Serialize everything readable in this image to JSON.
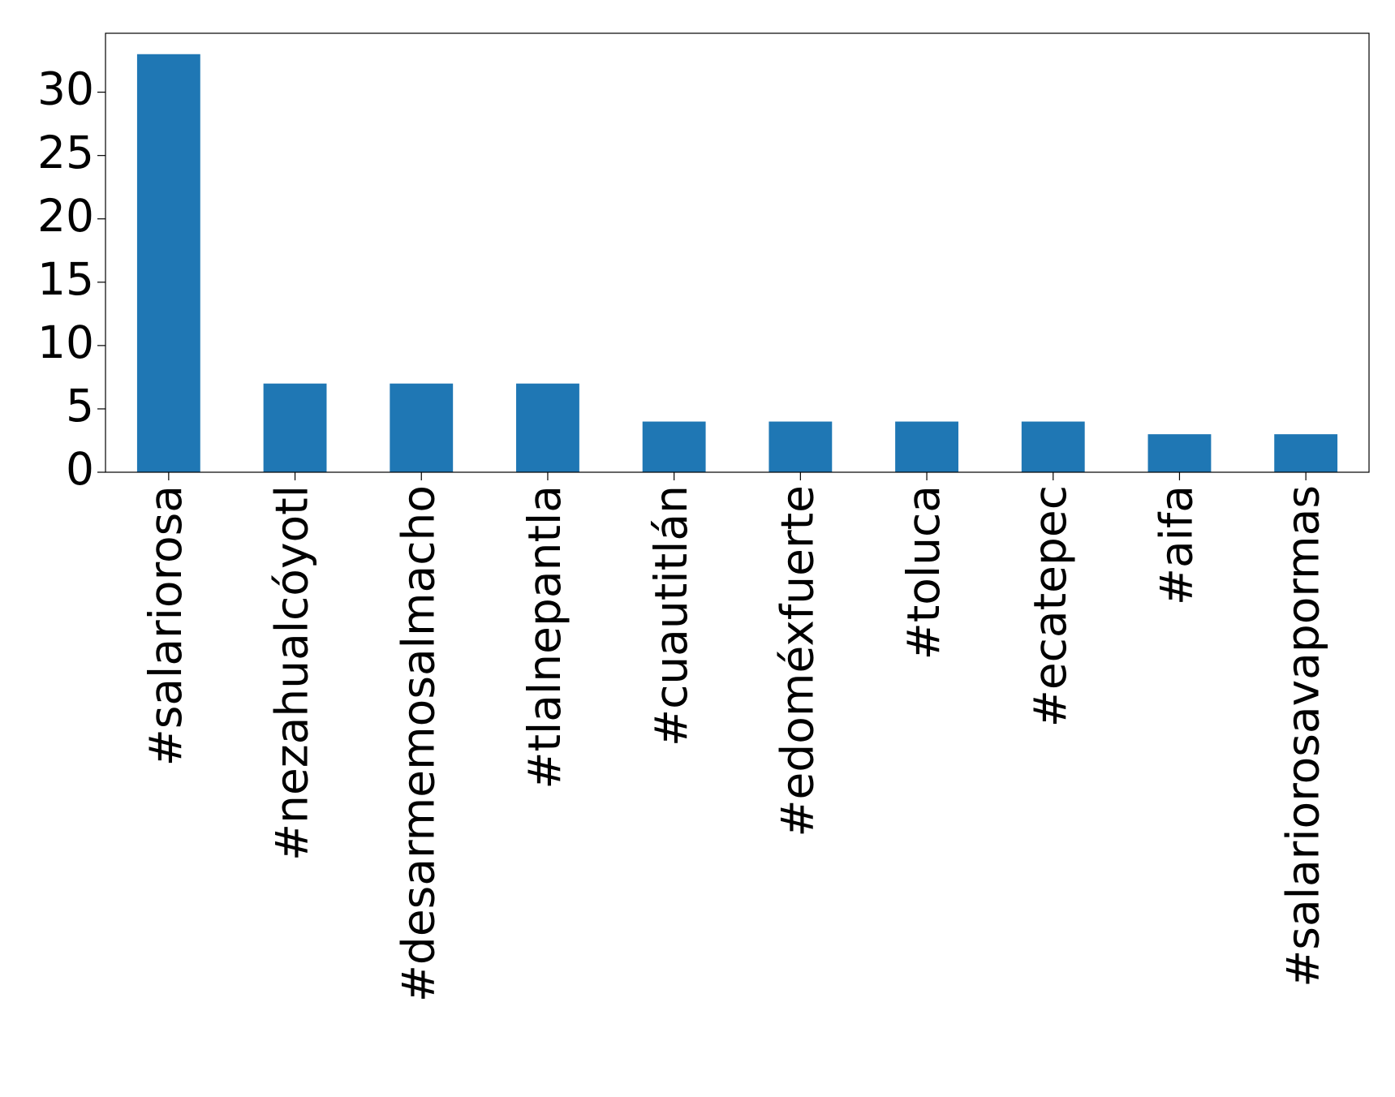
{
  "chart_data": {
    "type": "bar",
    "categories": [
      "#salariorosa",
      "#nezahualcóyotl",
      "#desarmemosalmacho",
      "#tlalnepantla",
      "#cuautitlán",
      "#edoméxfuerte",
      "#toluca",
      "#ecatepec",
      "#aifa",
      "#salariorosavapormas"
    ],
    "values": [
      33,
      7,
      7,
      7,
      4,
      4,
      4,
      4,
      3,
      3
    ],
    "color": "#1f77b4",
    "ylim": [
      0,
      34.65
    ],
    "yticks": [
      0,
      5,
      10,
      15,
      20,
      25,
      30
    ],
    "grid": false
  }
}
